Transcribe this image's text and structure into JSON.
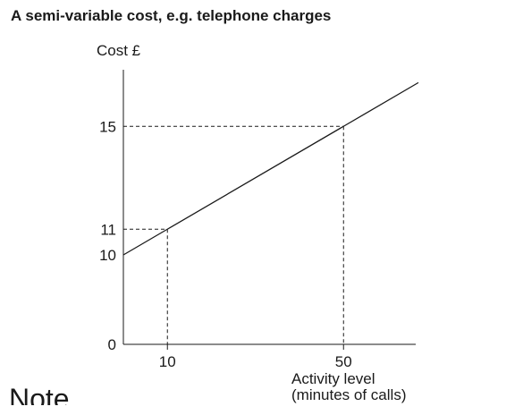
{
  "page": {
    "title": "A semi-variable cost, e.g. telephone charges",
    "cutoff_text": "Note"
  },
  "chart_data": {
    "type": "line",
    "title": "A semi-variable cost, e.g. telephone charges",
    "ylabel": "Cost £",
    "xlabel_lines": [
      "Activity level",
      "(minutes of calls)"
    ],
    "xlim": [
      0,
      65
    ],
    "ylim": [
      0,
      16.5
    ],
    "y_axis_break": true,
    "x_ticks": [
      {
        "value": 10,
        "label": "10"
      },
      {
        "value": 50,
        "label": "50"
      }
    ],
    "y_ticks": [
      {
        "value": 0,
        "label": "0"
      },
      {
        "value": 10,
        "label": "10"
      },
      {
        "value": 11,
        "label": "11"
      },
      {
        "value": 15,
        "label": "15"
      }
    ],
    "series": [
      {
        "x": [
          0,
          10,
          50,
          67
        ],
        "y": [
          10,
          11,
          15,
          16.7
        ],
        "color": "#1a1a1a"
      }
    ],
    "reference_points": [
      {
        "x": 10,
        "y": 11
      },
      {
        "x": 50,
        "y": 15
      }
    ],
    "grid": false,
    "colors": {
      "line": "#1a1a1a",
      "axis": "#1a1a1a",
      "guide": "#1a1a1a"
    }
  }
}
